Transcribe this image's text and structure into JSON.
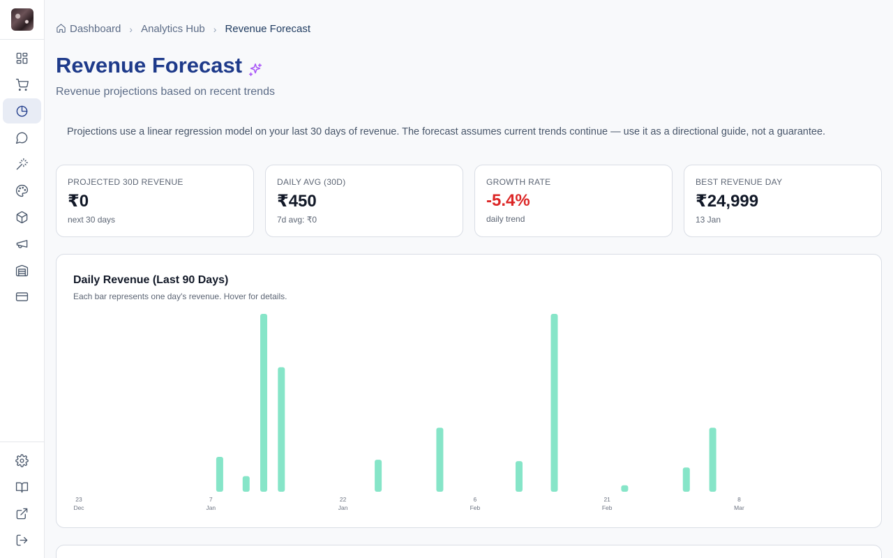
{
  "sidebar": {
    "logo_name": "app-logo",
    "items": [
      {
        "icon": "dashboard-icon"
      },
      {
        "icon": "cart-icon"
      },
      {
        "icon": "pie-chart-icon",
        "active": true
      },
      {
        "icon": "chat-icon"
      },
      {
        "icon": "magic-wand-icon"
      },
      {
        "icon": "palette-icon"
      },
      {
        "icon": "box-icon"
      },
      {
        "icon": "megaphone-icon"
      },
      {
        "icon": "warehouse-icon"
      },
      {
        "icon": "credit-card-icon"
      }
    ],
    "bottom_items": [
      {
        "icon": "gear-icon"
      },
      {
        "icon": "book-icon"
      },
      {
        "icon": "external-link-icon"
      },
      {
        "icon": "logout-icon"
      }
    ]
  },
  "breadcrumb": {
    "items": [
      "Dashboard",
      "Analytics Hub",
      "Revenue Forecast"
    ]
  },
  "page": {
    "title": "Revenue Forecast",
    "subtitle": "Revenue projections based on recent trends",
    "notice": "Projections use a linear regression model on your last 30 days of revenue. The forecast assumes current trends continue — use it as a directional guide, not a guarantee."
  },
  "stats": [
    {
      "label": "PROJECTED 30D REVENUE",
      "value": "₹0",
      "sub": "next 30 days"
    },
    {
      "label": "DAILY AVG (30D)",
      "value": "₹450",
      "sub": "7d avg: ₹0"
    },
    {
      "label": "GROWTH RATE",
      "value": "-5.4%",
      "sub": "daily trend",
      "negative": true
    },
    {
      "label": "BEST REVENUE DAY",
      "value": "₹24,999",
      "sub": "13 Jan"
    }
  ],
  "chart_panel": {
    "title": "Daily Revenue (Last 90 Days)",
    "description": "Each bar represents one day's revenue. Hover for details."
  },
  "chart_data": {
    "type": "bar",
    "x_tick_labels": [
      {
        "day": "23",
        "month": "Dec",
        "index": 0
      },
      {
        "day": "7",
        "month": "Jan",
        "index": 15
      },
      {
        "day": "22",
        "month": "Jan",
        "index": 30
      },
      {
        "day": "6",
        "month": "Feb",
        "index": 45
      },
      {
        "day": "21",
        "month": "Feb",
        "index": 60
      },
      {
        "day": "8",
        "month": "Mar",
        "index": 75
      }
    ],
    "n_days": 90,
    "ylim": [
      0,
      24999
    ],
    "bar_color": "#86e5c8",
    "bars": [
      {
        "index": 16,
        "value": 4900
      },
      {
        "index": 19,
        "value": 2200
      },
      {
        "index": 21,
        "value": 24999
      },
      {
        "index": 23,
        "value": 17500
      },
      {
        "index": 34,
        "value": 4500
      },
      {
        "index": 41,
        "value": 9000
      },
      {
        "index": 50,
        "value": 4300
      },
      {
        "index": 54,
        "value": 24999
      },
      {
        "index": 62,
        "value": 900
      },
      {
        "index": 69,
        "value": 3400
      },
      {
        "index": 72,
        "value": 9000
      }
    ]
  },
  "colors": {
    "accent": "#1e3a8a",
    "negative": "#dc2626",
    "sparkle": "#a855f7"
  }
}
